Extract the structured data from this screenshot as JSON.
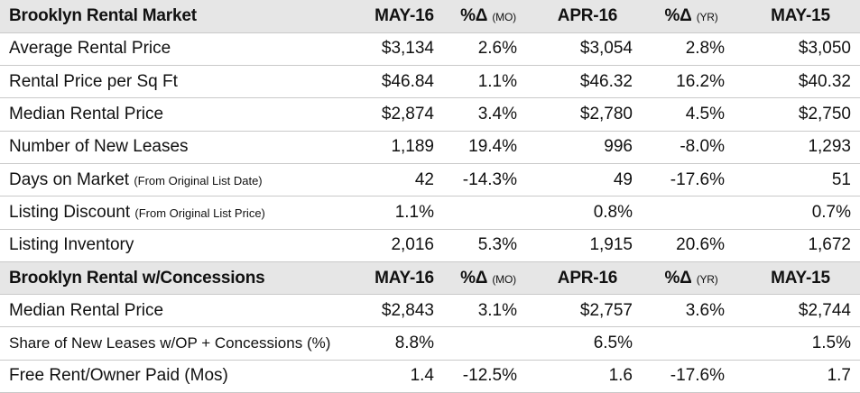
{
  "section1": {
    "title": "Brooklyn Rental Market",
    "col1": "MAY-16",
    "col2_pct": "%Δ",
    "col2_unit": "(MO)",
    "col3": "APR-16",
    "col4_pct": "%Δ",
    "col4_unit": "(YR)",
    "col5": "MAY-15",
    "rows": [
      {
        "label": "Average Rental Price",
        "note": "",
        "may16": "$3,134",
        "mo": "2.6%",
        "apr16": "$3,054",
        "yr": "2.8%",
        "may15": "$3,050"
      },
      {
        "label": "Rental Price per Sq Ft",
        "note": "",
        "may16": "$46.84",
        "mo": "1.1%",
        "apr16": "$46.32",
        "yr": "16.2%",
        "may15": "$40.32"
      },
      {
        "label": "Median Rental Price",
        "note": "",
        "may16": "$2,874",
        "mo": "3.4%",
        "apr16": "$2,780",
        "yr": "4.5%",
        "may15": "$2,750"
      },
      {
        "label": "Number of New Leases",
        "note": "",
        "may16": "1,189",
        "mo": "19.4%",
        "apr16": "996",
        "yr": "-8.0%",
        "may15": "1,293"
      },
      {
        "label": "Days on Market",
        "note": "(From Original List Date)",
        "may16": "42",
        "mo": "-14.3%",
        "apr16": "49",
        "yr": "-17.6%",
        "may15": "51"
      },
      {
        "label": "Listing Discount",
        "note": "(From Original List Price)",
        "may16": "1.1%",
        "mo": "",
        "apr16": "0.8%",
        "yr": "",
        "may15": "0.7%"
      },
      {
        "label": "Listing Inventory",
        "note": "",
        "may16": "2,016",
        "mo": "5.3%",
        "apr16": "1,915",
        "yr": "20.6%",
        "may15": "1,672"
      }
    ]
  },
  "section2": {
    "title": "Brooklyn Rental w/Concessions",
    "col1": "MAY-16",
    "col2_pct": "%Δ",
    "col2_unit": "(MO)",
    "col3": "APR-16",
    "col4_pct": "%Δ",
    "col4_unit": "(YR)",
    "col5": "MAY-15",
    "rows": [
      {
        "label": "Median Rental Price",
        "may16": "$2,843",
        "mo": "3.1%",
        "apr16": "$2,757",
        "yr": "3.6%",
        "may15": "$2,744"
      },
      {
        "label": "Share of New Leases w/OP + Concessions (%)",
        "may16": "8.8%",
        "mo": "",
        "apr16": "6.5%",
        "yr": "",
        "may15": "1.5%"
      },
      {
        "label": "Free Rent/Owner Paid (Mos)",
        "may16": "1.4",
        "mo": "-12.5%",
        "apr16": "1.6",
        "yr": "-17.6%",
        "may15": "1.7"
      }
    ]
  }
}
